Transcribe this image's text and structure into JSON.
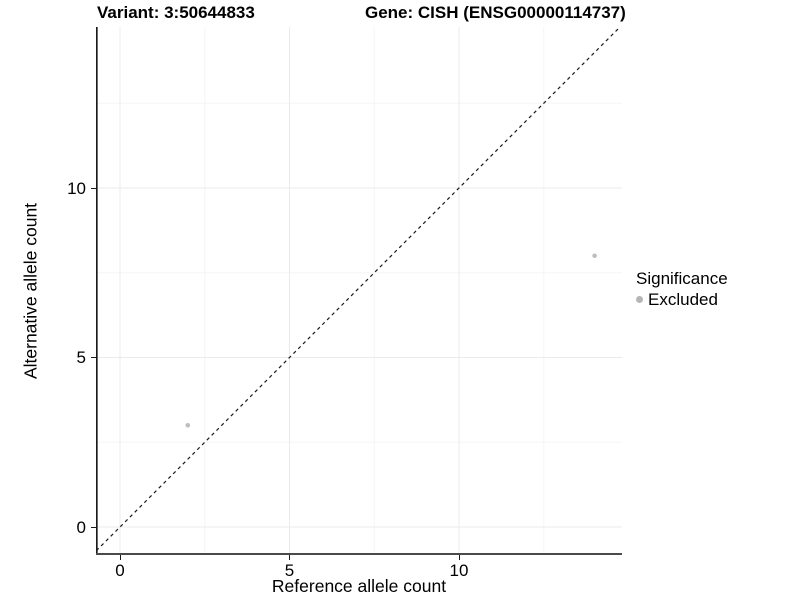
{
  "chart_data": {
    "type": "scatter",
    "title_variant": "Variant: 3:50644833",
    "title_gene": "Gene: CISH (ENSG00000114737)",
    "xlabel": "Reference allele count",
    "ylabel": "Alternative allele count",
    "x_ticks": [
      0,
      5,
      10
    ],
    "y_ticks": [
      0,
      5,
      10
    ],
    "minor_gridlines": [
      2.5,
      7.5,
      12.5
    ],
    "xlim": [
      -0.7,
      14.8
    ],
    "ylim": [
      -0.8,
      14.75
    ],
    "grid": "major and minor gridlines, very light gray on white",
    "identity_line": {
      "style": "dashed",
      "slope": 1,
      "intercept": 0,
      "color": "#1a1a1a"
    },
    "series": [
      {
        "name": "Excluded",
        "color": "#bebebe",
        "point_radius": 2.3,
        "points": [
          {
            "x": 2,
            "y": 3
          },
          {
            "x": 14,
            "y": 8
          }
        ]
      }
    ],
    "legend": {
      "title": "Significance",
      "position": "right, vertically centered",
      "items": [
        {
          "label": "Excluded",
          "color": "#b5b5b5"
        }
      ]
    },
    "colors": {
      "y_axis_line": "#1a1a1a",
      "x_axis_line": "#4a4a4a",
      "major_grid": "#ebebeb",
      "minor_grid": "#f5f5f5",
      "text": "#000000"
    }
  }
}
